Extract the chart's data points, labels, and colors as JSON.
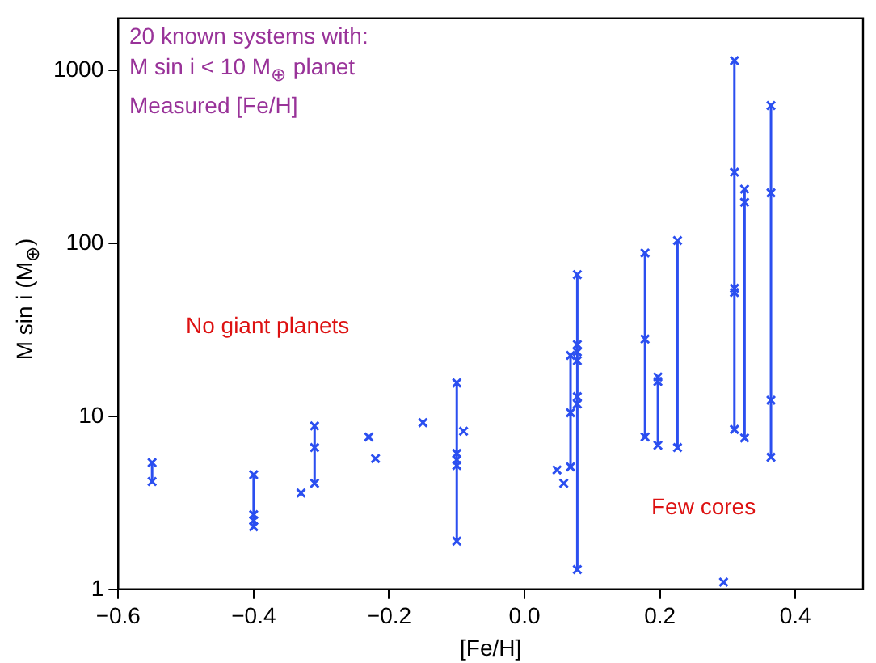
{
  "chart_data": {
    "type": "line",
    "marker": "cross",
    "legend": false,
    "grid": false,
    "log": "y",
    "xlabel": "[Fe/H]",
    "ylabel": "M sin i (M$_{⊕}$)",
    "xlim": [
      -0.6,
      0.5
    ],
    "xticks": [
      {
        "value": -0.6,
        "label": "−0.6"
      },
      {
        "value": -0.4,
        "label": "−0.4"
      },
      {
        "value": -0.2,
        "label": "−0.2"
      },
      {
        "value": 0,
        "label": "0.0"
      },
      {
        "value": 0.2,
        "label": "0.2"
      },
      {
        "value": 0.4,
        "label": "0.4"
      }
    ],
    "ylim": [
      1,
      2000
    ],
    "yticks": [
      1,
      10,
      100,
      1000
    ],
    "annotations": [
      "20 known systems with:\nM sin i < 10 M$_{⊕}$ planet\nMeasured [Fe/H]",
      "No giant planets",
      "Few cores"
    ],
    "series": [
      {
        "color": "#2b4ff0",
        "x": [
          -0.55,
          -0.55
        ],
        "values": [
          5.4,
          4.2
        ]
      },
      {
        "color": "#2b4ff0",
        "x": [
          -0.4,
          -0.4,
          -0.4,
          -0.4
        ],
        "values": [
          4.6,
          2.7,
          2.5,
          2.3
        ]
      },
      {
        "color": "#2b4ff0",
        "x": [
          -0.33
        ],
        "values": [
          3.6
        ]
      },
      {
        "color": "#2b4ff0",
        "x": [
          -0.31,
          -0.31,
          -0.31
        ],
        "values": [
          8.8,
          6.6,
          4.1
        ]
      },
      {
        "color": "#2b4ff0",
        "x": [
          -0.23
        ],
        "values": [
          7.6
        ]
      },
      {
        "color": "#2b4ff0",
        "x": [
          -0.22
        ],
        "values": [
          5.7
        ]
      },
      {
        "color": "#2b4ff0",
        "x": [
          -0.15
        ],
        "values": [
          9.2
        ]
      },
      {
        "color": "#2b4ff0",
        "x": [
          -0.1,
          -0.1,
          -0.1,
          -0.1,
          -0.1
        ],
        "values": [
          15.6,
          6.1,
          5.6,
          5.2,
          1.9
        ]
      },
      {
        "color": "#2b4ff0",
        "x": [
          -0.09
        ],
        "values": [
          8.2
        ]
      },
      {
        "color": "#2b4ff0",
        "x": [
          0.048
        ],
        "values": [
          4.9
        ]
      },
      {
        "color": "#2b4ff0",
        "x": [
          0.058
        ],
        "values": [
          4.1
        ]
      },
      {
        "color": "#2b4ff0",
        "x": [
          0.068,
          0.068,
          0.068
        ],
        "values": [
          22.5,
          10.5,
          5.1
        ]
      },
      {
        "color": "#2b4ff0",
        "x": [
          0.078,
          0.078,
          0.078,
          0.078,
          0.078,
          0.078,
          0.078
        ],
        "values": [
          66,
          26,
          23.6,
          21,
          13,
          11.8,
          1.3
        ]
      },
      {
        "color": "#2b4ff0",
        "x": [
          0.178,
          0.178,
          0.178
        ],
        "values": [
          88,
          28,
          7.6
        ]
      },
      {
        "color": "#2b4ff0",
        "x": [
          0.197,
          0.197,
          0.197
        ],
        "values": [
          16.9,
          15.9,
          6.8
        ]
      },
      {
        "color": "#2b4ff0",
        "x": [
          0.226,
          0.226
        ],
        "values": [
          104,
          6.6
        ]
      },
      {
        "color": "#2b4ff0",
        "x": [
          0.294
        ],
        "values": [
          1.1
        ]
      },
      {
        "color": "#2b4ff0",
        "x": [
          0.31,
          0.31,
          0.31,
          0.31,
          0.31
        ],
        "values": [
          1140,
          258,
          55,
          52,
          8.4
        ]
      },
      {
        "color": "#2b4ff0",
        "x": [
          0.325,
          0.325,
          0.325
        ],
        "values": [
          206,
          173,
          7.5
        ]
      },
      {
        "color": "#2b4ff0",
        "x": [
          0.364,
          0.364,
          0.364,
          0.364
        ],
        "values": [
          627,
          196,
          12.4,
          5.8
        ]
      }
    ]
  }
}
